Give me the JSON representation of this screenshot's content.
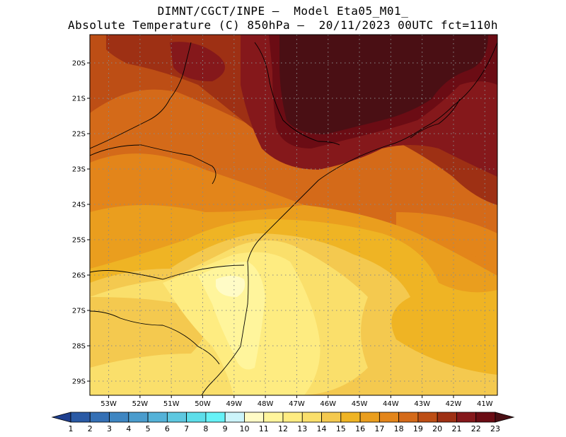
{
  "header": {
    "line1": "DIMNT/CGCT/INPE —  Model Eta05_M01_",
    "line2": "Absolute Temperature (C) 850hPa —  20/11/2023 00UTC fct=110h"
  },
  "map": {
    "lat_labels": [
      "20S",
      "21S",
      "22S",
      "23S",
      "24S",
      "25S",
      "26S",
      "27S",
      "28S",
      "29S"
    ],
    "lon_labels": [
      "53W",
      "52W",
      "51W",
      "50W",
      "49W",
      "48W",
      "47W",
      "46W",
      "45W",
      "44W",
      "43W",
      "42W",
      "41W"
    ],
    "lat_range": [
      -29.4,
      -19.2
    ],
    "lon_range": [
      -53.6,
      -40.6
    ]
  },
  "colorbar": {
    "labels": [
      "1",
      "2",
      "3",
      "4",
      "5",
      "6",
      "7",
      "8",
      "9",
      "10",
      "11",
      "12",
      "13",
      "14",
      "15",
      "16",
      "17",
      "18",
      "19",
      "20",
      "21",
      "22",
      "23"
    ],
    "colors": [
      "#1f3f8f",
      "#2a5aa5",
      "#3570b5",
      "#3f86c2",
      "#4a9ccd",
      "#54b2d8",
      "#5ec8e0",
      "#5ddeea",
      "#66f2f7",
      "#ccf4fa",
      "#fffbc6",
      "#fff59c",
      "#feec81",
      "#fadf6b",
      "#f4c94f",
      "#efb424",
      "#ea9e1e",
      "#e3851a",
      "#d46a19",
      "#bd4e15",
      "#9e3014",
      "#85181b",
      "#6b0c14",
      "#4a0f14"
    ]
  }
}
